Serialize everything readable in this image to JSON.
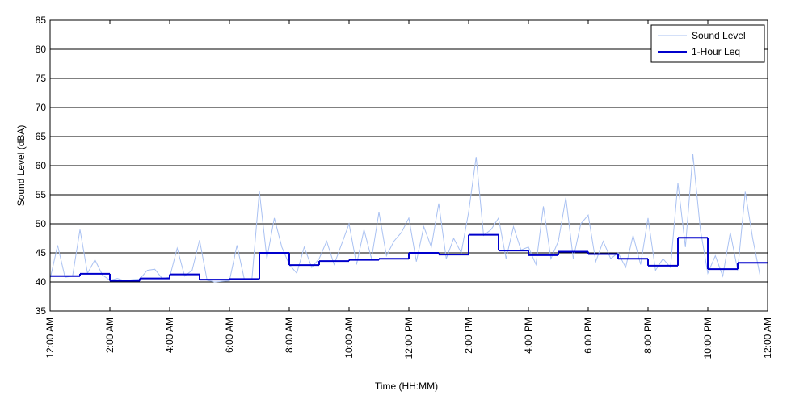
{
  "chart_data": {
    "type": "line",
    "xlabel": "Time (HH:MM)",
    "ylabel": "Sound Level (dBA)",
    "xlim": [
      0,
      24
    ],
    "ylim": [
      35,
      85
    ],
    "xticks": [
      {
        "value": 0,
        "label": "12:00 AM"
      },
      {
        "value": 2,
        "label": "2:00 AM"
      },
      {
        "value": 4,
        "label": "4:00 AM"
      },
      {
        "value": 6,
        "label": "6:00 AM"
      },
      {
        "value": 8,
        "label": "8:00 AM"
      },
      {
        "value": 10,
        "label": "10:00 AM"
      },
      {
        "value": 12,
        "label": "12:00 PM"
      },
      {
        "value": 14,
        "label": "2:00 PM"
      },
      {
        "value": 16,
        "label": "4:00 PM"
      },
      {
        "value": 18,
        "label": "6:00 PM"
      },
      {
        "value": 20,
        "label": "8:00 PM"
      },
      {
        "value": 22,
        "label": "10:00 PM"
      },
      {
        "value": 24,
        "label": "12:00 AM"
      }
    ],
    "yticks": [
      35,
      40,
      45,
      50,
      55,
      60,
      65,
      70,
      75,
      80,
      85
    ],
    "grid": true,
    "legend": "upper right",
    "series": [
      {
        "name": "Sound Level",
        "color": "#a9c1f2",
        "x": [
          0,
          0.25,
          0.5,
          0.75,
          1,
          1.25,
          1.5,
          1.75,
          2,
          2.25,
          2.5,
          2.75,
          3,
          3.25,
          3.5,
          3.75,
          4,
          4.25,
          4.5,
          4.75,
          5,
          5.25,
          5.5,
          5.75,
          6,
          6.25,
          6.5,
          6.75,
          7,
          7.25,
          7.5,
          7.75,
          8,
          8.25,
          8.5,
          8.75,
          9,
          9.25,
          9.5,
          9.75,
          10,
          10.25,
          10.5,
          10.75,
          11,
          11.25,
          11.5,
          11.75,
          12,
          12.25,
          12.5,
          12.75,
          13,
          13.25,
          13.5,
          13.75,
          14,
          14.25,
          14.5,
          14.75,
          15,
          15.25,
          15.5,
          15.75,
          16,
          16.25,
          16.5,
          16.75,
          17,
          17.25,
          17.5,
          17.75,
          18,
          18.25,
          18.5,
          18.75,
          19,
          19.25,
          19.5,
          19.75,
          20,
          20.25,
          20.5,
          20.75,
          21,
          21.25,
          21.5,
          21.75,
          22,
          22.25,
          22.5,
          22.75,
          23,
          23.25,
          23.5,
          23.75
        ],
        "values": [
          40.5,
          46.3,
          40.8,
          41.0,
          49.0,
          41.5,
          43.8,
          41.2,
          40.3,
          40.6,
          40.2,
          40.4,
          40.5,
          42.0,
          42.2,
          40.6,
          40.8,
          45.8,
          41.0,
          42.0,
          47.2,
          40.3,
          40.0,
          40.1,
          40.2,
          46.3,
          40.4,
          40.5,
          55.6,
          44.0,
          51.0,
          46.0,
          43.0,
          41.5,
          46.0,
          42.5,
          44.0,
          47.0,
          43.0,
          46.5,
          50.0,
          43.0,
          49.0,
          44.0,
          52.0,
          44.5,
          47.0,
          48.5,
          51.0,
          43.5,
          49.5,
          46.0,
          53.5,
          44.0,
          47.5,
          45.0,
          52.0,
          61.5,
          48.0,
          49.0,
          51.0,
          44.0,
          49.5,
          45.5,
          46.0,
          43.0,
          53.0,
          44.0,
          47.0,
          54.5,
          44.0,
          50.0,
          51.5,
          43.5,
          47.0,
          44.0,
          45.0,
          42.5,
          48.0,
          43.0,
          51.0,
          42.0,
          44.0,
          42.5,
          57.0,
          46.0,
          62.0,
          49.0,
          41.5,
          44.5,
          41.0,
          48.5,
          42.0,
          55.5,
          47.5,
          41.0
        ]
      },
      {
        "name": "1-Hour Leq",
        "color": "#0000cc",
        "step": "post",
        "x": [
          0,
          1,
          2,
          3,
          4,
          5,
          6,
          7,
          8,
          9,
          10,
          11,
          12,
          13,
          14,
          15,
          16,
          17,
          18,
          19,
          20,
          21,
          22,
          23
        ],
        "values": [
          41.0,
          41.4,
          40.2,
          40.6,
          41.3,
          40.4,
          40.5,
          45.0,
          42.9,
          43.6,
          43.8,
          44.0,
          45.0,
          44.7,
          48.1,
          45.4,
          44.6,
          45.2,
          44.8,
          44.0,
          42.8,
          47.6,
          42.2,
          43.3
        ]
      }
    ]
  }
}
